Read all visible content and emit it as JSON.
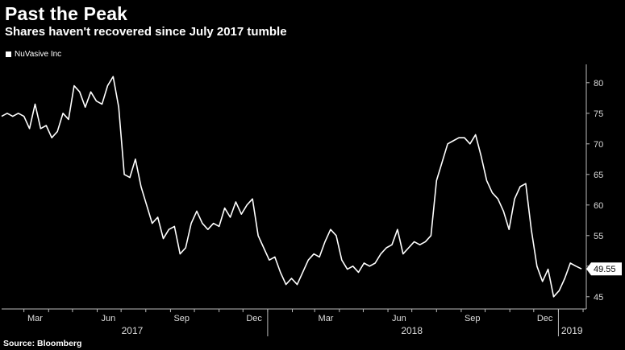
{
  "header": {
    "title": "Past the Peak",
    "subtitle": "Shares haven't recovered since July 2017 tumble"
  },
  "legend": {
    "label": "NuVasive Inc"
  },
  "source": "Source: Bloomberg",
  "colors": {
    "background": "#000000",
    "line": "#ffffff",
    "grid": "#2a2a2a"
  },
  "chart_data": {
    "type": "line",
    "title": "Past the Peak",
    "subtitle": "Shares haven't recovered since July 2017 tumble",
    "series": [
      {
        "name": "NuVasive Inc",
        "x": [
          "2017-02-01",
          "2017-02-08",
          "2017-02-15",
          "2017-02-22",
          "2017-03-01",
          "2017-03-08",
          "2017-03-15",
          "2017-03-22",
          "2017-03-29",
          "2017-04-05",
          "2017-04-12",
          "2017-04-19",
          "2017-04-26",
          "2017-05-03",
          "2017-05-10",
          "2017-05-17",
          "2017-05-24",
          "2017-05-31",
          "2017-06-07",
          "2017-06-14",
          "2017-06-21",
          "2017-06-28",
          "2017-07-05",
          "2017-07-12",
          "2017-07-19",
          "2017-07-26",
          "2017-08-02",
          "2017-08-09",
          "2017-08-16",
          "2017-08-23",
          "2017-08-30",
          "2017-09-06",
          "2017-09-13",
          "2017-09-20",
          "2017-09-27",
          "2017-10-04",
          "2017-10-11",
          "2017-10-18",
          "2017-10-25",
          "2017-11-01",
          "2017-11-08",
          "2017-11-15",
          "2017-11-22",
          "2017-11-29",
          "2017-12-06",
          "2017-12-13",
          "2017-12-20",
          "2017-12-27",
          "2018-01-03",
          "2018-01-10",
          "2018-01-17",
          "2018-01-24",
          "2018-01-31",
          "2018-02-07",
          "2018-02-14",
          "2018-02-21",
          "2018-02-28",
          "2018-03-07",
          "2018-03-14",
          "2018-03-21",
          "2018-03-28",
          "2018-04-04",
          "2018-04-11",
          "2018-04-18",
          "2018-04-25",
          "2018-05-02",
          "2018-05-09",
          "2018-05-16",
          "2018-05-23",
          "2018-05-30",
          "2018-06-06",
          "2018-06-13",
          "2018-06-20",
          "2018-06-27",
          "2018-07-04",
          "2018-07-11",
          "2018-07-18",
          "2018-07-25",
          "2018-08-01",
          "2018-08-08",
          "2018-08-15",
          "2018-08-22",
          "2018-08-29",
          "2018-09-05",
          "2018-09-12",
          "2018-09-19",
          "2018-09-26",
          "2018-10-03",
          "2018-10-10",
          "2018-10-17",
          "2018-10-24",
          "2018-10-31",
          "2018-11-07",
          "2018-11-14",
          "2018-11-21",
          "2018-11-28",
          "2018-12-05",
          "2018-12-12",
          "2018-12-19",
          "2018-12-26",
          "2019-01-02",
          "2019-01-09",
          "2019-01-16",
          "2019-01-23",
          "2019-01-30"
        ],
        "values": [
          74.5,
          75,
          74.5,
          75,
          74.5,
          72.5,
          76.5,
          72.5,
          73,
          71,
          72,
          75,
          74,
          79.5,
          78.5,
          76,
          78.5,
          77,
          76.5,
          79.5,
          81,
          76,
          65,
          64.5,
          67.5,
          63,
          60,
          57,
          58,
          54.5,
          56,
          56.5,
          52,
          53,
          57,
          59,
          57,
          56,
          57,
          56.5,
          59.5,
          58,
          60.5,
          58.5,
          60,
          61,
          55,
          53,
          51,
          51.5,
          49,
          47,
          48,
          47,
          49,
          51,
          52,
          51.5,
          54,
          56,
          55,
          51,
          49.5,
          50,
          49,
          50.5,
          50,
          50.5,
          52,
          53,
          53.5,
          56,
          52,
          53,
          54,
          53.5,
          54,
          55,
          64,
          67,
          70,
          70.5,
          71,
          71,
          70,
          71.5,
          68,
          64,
          62,
          61,
          59,
          56,
          61,
          63,
          63.5,
          56,
          50,
          47.5,
          49.5,
          45,
          46,
          48,
          50.5,
          50,
          49.55
        ]
      }
    ],
    "last_value_label": "49.55",
    "ylim": [
      43,
      83
    ],
    "yticks": [
      45,
      50,
      55,
      60,
      65,
      70,
      75,
      80
    ],
    "x_tick_labels": [
      "Mar",
      "Jun",
      "Sep",
      "Dec",
      "Mar",
      "Jun",
      "Sep",
      "Dec"
    ],
    "x_year_labels": [
      "2017",
      "2018",
      "2019"
    ],
    "xlim": [
      "2017-02-01",
      "2019-02-05"
    ],
    "y_axis_position": "right",
    "grid": false,
    "legend_position": "top-left"
  }
}
